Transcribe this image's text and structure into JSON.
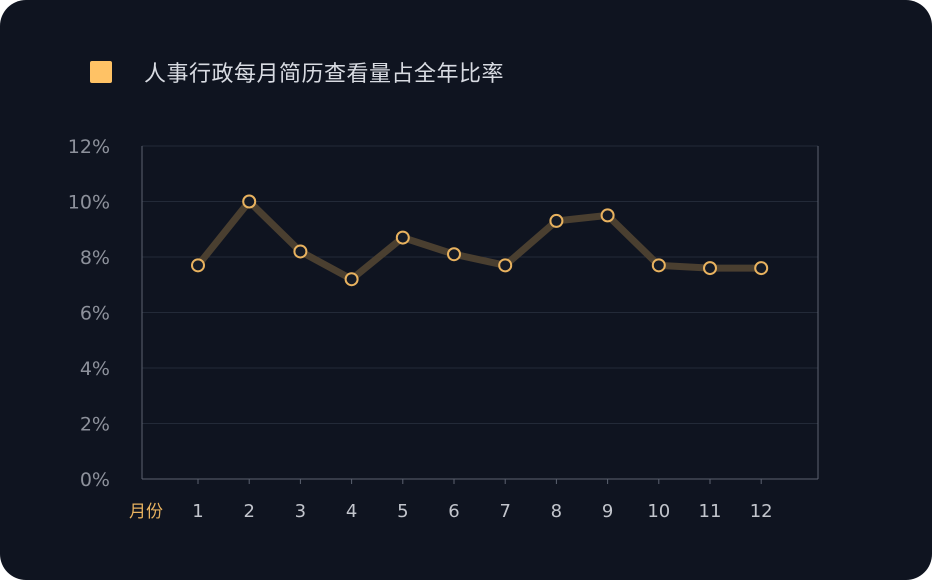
{
  "legend": {
    "label": "人事行政每月简历查看量占全年比率",
    "color": "#ffc265"
  },
  "chart_data": {
    "type": "line",
    "xlabel": "月份",
    "ylabel": "",
    "categories": [
      "1",
      "2",
      "3",
      "4",
      "5",
      "6",
      "7",
      "8",
      "9",
      "10",
      "11",
      "12"
    ],
    "series": [
      {
        "name": "人事行政每月简历查看量占全年比率",
        "values": [
          7.7,
          10.0,
          8.2,
          7.2,
          8.7,
          8.1,
          7.7,
          9.3,
          9.5,
          7.7,
          7.6,
          7.6
        ]
      }
    ],
    "ylim": [
      0,
      12
    ],
    "yticks": [
      0,
      2,
      4,
      6,
      8,
      10,
      12
    ],
    "ytick_labels": [
      "0%",
      "2%",
      "4%",
      "6%",
      "8%",
      "10%",
      "12%"
    ],
    "grid": true,
    "legend_position": "top-left",
    "colors": {
      "line": "#4a3f30",
      "marker_stroke": "#e8b25f",
      "grid": "#232a38",
      "axis": "#5c6270"
    }
  }
}
